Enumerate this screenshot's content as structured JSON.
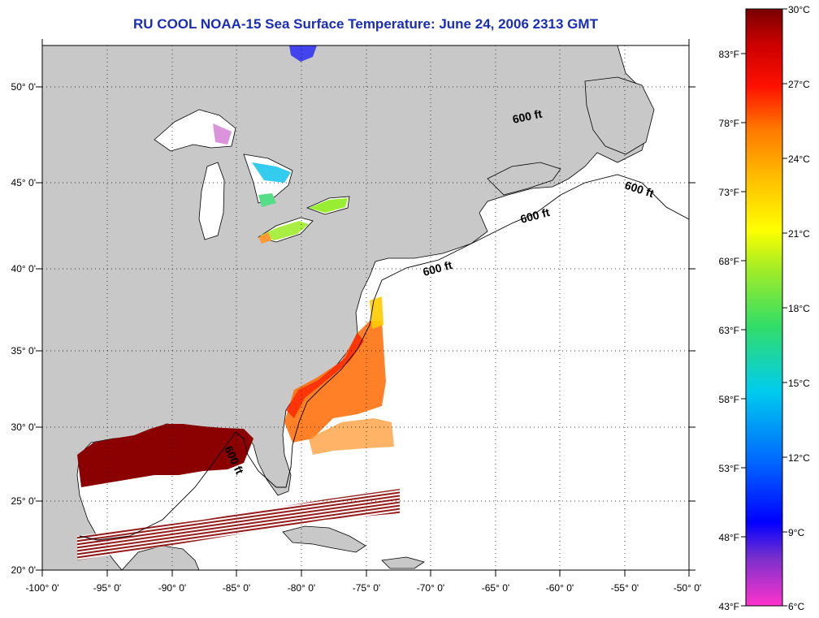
{
  "title": "RU COOL  NOAA-15  Sea Surface Temperature:  June 24, 2006 2313 GMT",
  "latitude_labels": [
    "50° 0'",
    "45° 0'",
    "40° 0'",
    "35° 0'",
    "30° 0'",
    "25° 0'",
    "20° 0'"
  ],
  "longitude_labels": [
    "-100° 0'",
    "-95° 0'",
    "-90° 0'",
    "-85° 0'",
    "-80° 0'",
    "-75° 0'",
    "-70° 0'",
    "-65° 0'",
    "-60° 0'",
    "-55° 0'",
    "-50° 0'"
  ],
  "contour_labels": [
    "600 ft",
    "600 ft",
    "600 ft",
    "600 ft",
    "600 ft"
  ],
  "colorbar": {
    "celsius_labels": [
      "30°C",
      "27°C",
      "24°C",
      "21°C",
      "18°C",
      "15°C",
      "12°C",
      "9°C",
      "6°C"
    ],
    "fahrenheit_labels": [
      "83°F",
      "78°F",
      "73°F",
      "68°F",
      "63°F",
      "58°F",
      "53°F",
      "48°F",
      "43°F"
    ],
    "scale_colors": [
      "#ff33cc",
      "#7a30cc",
      "#0000ff",
      "#00aaff",
      "#00e0e0",
      "#33dd66",
      "#aaee22",
      "#ffff00",
      "#ffbb00",
      "#ff7700",
      "#ff1100",
      "#cc0000",
      "#7a0000"
    ]
  },
  "colors": {
    "land": "#c8c8c8",
    "ocean": "#ffffff",
    "title": "#1a2db5",
    "gulf_warm": "#8b0000"
  }
}
